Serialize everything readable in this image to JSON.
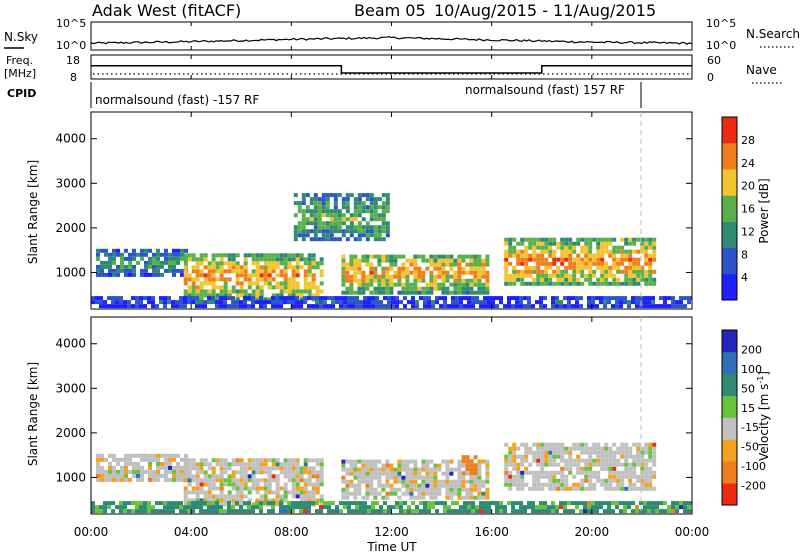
{
  "header": {
    "radar_title": "Adak West (fitACF)",
    "beam_label": "Beam 05",
    "date_range": "10/Aug/2015 - 11/Aug/2015"
  },
  "noise_panel": {
    "label": "N.Sky",
    "left_ticks": [
      "10^5",
      "10^0"
    ],
    "right_ticks": [
      "10^5",
      "10^0"
    ],
    "right_label": "N.Search"
  },
  "freq_panel": {
    "label_line1": "Freq.",
    "label_line2": "[MHz]",
    "left_ticks": [
      "18",
      "8"
    ],
    "right_ticks": [
      "60",
      "0"
    ],
    "right_label": "Nave"
  },
  "cpid_panel": {
    "label": "CPID",
    "left_program": "normalsound (fast) -157 RF",
    "right_program": "normalsound (fast) 157 RF"
  },
  "power_panel": {
    "ylabel": "Slant Range [km]",
    "yticks": [
      "4000",
      "3000",
      "2000",
      "1000"
    ],
    "colorbar_label": "Power [dB]",
    "colorbar_ticks": [
      "28",
      "24",
      "20",
      "16",
      "12",
      "8",
      "4"
    ],
    "colors": [
      "#1f1fff",
      "#2b55c8",
      "#2f8a73",
      "#59b04a",
      "#f4c430",
      "#f07e1c",
      "#ee2a12"
    ]
  },
  "velocity_panel": {
    "ylabel": "Slant Range [km]",
    "yticks": [
      "4000",
      "3000",
      "2000",
      "1000"
    ],
    "colorbar_label": "Velocity [m s",
    "colorbar_exp": "-1",
    "colorbar_label_end": "]",
    "colorbar_ticks": [
      "200",
      "100",
      "50",
      "15",
      "-15",
      "-50",
      "-100",
      "-200"
    ],
    "colors": [
      "#2424c0",
      "#2c70b8",
      "#2f8a73",
      "#65c43c",
      "#c0c0c0",
      "#f4a020",
      "#f07e1c",
      "#ee2a12"
    ]
  },
  "x_axis": {
    "label": "Time UT",
    "ticks": [
      "00:00",
      "04:00",
      "08:00",
      "12:00",
      "16:00",
      "20:00",
      "00:00"
    ]
  },
  "chart_data": [
    {
      "type": "line",
      "title": "N.Sky",
      "x": [
        "00:00",
        "04:00",
        "08:00",
        "12:00",
        "16:00",
        "20:00",
        "00:00"
      ],
      "series": [
        {
          "name": "N.Sky",
          "values": [
            1.2,
            1.5,
            1.9,
            2.2,
            1.8,
            1.4,
            1.2
          ]
        }
      ],
      "yscale": "log",
      "ylim": [
        1,
        100000
      ]
    },
    {
      "type": "line",
      "title": "Freq.",
      "ylabel": "[MHz]",
      "x": [
        "00:00",
        "10:00",
        "10:00",
        "18:00",
        "18:00",
        "00:00"
      ],
      "series": [
        {
          "name": "Freq.",
          "values": [
            13.5,
            13.5,
            10.5,
            10.5,
            13.5,
            13.5
          ]
        }
      ],
      "ylim": [
        8,
        18
      ]
    },
    {
      "type": "heatmap",
      "title": "Power [dB]",
      "xlabel": "Time UT",
      "ylabel": "Slant Range [km]",
      "x_range_hours": [
        0,
        24
      ],
      "y_range_km": [
        180,
        4600
      ],
      "color_scale": [
        0,
        30
      ],
      "regions": [
        {
          "t0": 0.2,
          "t1": 3.8,
          "r0": 900,
          "r1": 1450,
          "level_db": 12
        },
        {
          "t0": 3.7,
          "t1": 9.2,
          "r0": 350,
          "r1": 1380,
          "level_db": 23
        },
        {
          "t0": 8.1,
          "t1": 11.8,
          "r0": 1700,
          "r1": 2700,
          "level_db": 15
        },
        {
          "t0": 10.0,
          "t1": 15.8,
          "r0": 500,
          "r1": 1400,
          "level_db": 22
        },
        {
          "t0": 16.5,
          "t1": 22.5,
          "r0": 700,
          "r1": 1700,
          "level_db": 24
        },
        {
          "t0": 0.0,
          "t1": 24.0,
          "r0": 200,
          "r1": 420,
          "level_db": 6
        }
      ]
    },
    {
      "type": "heatmap",
      "title": "Velocity",
      "xlabel": "Time UT",
      "ylabel": "Slant Range [km]",
      "x_range_hours": [
        0,
        24
      ],
      "y_range_km": [
        180,
        4600
      ],
      "color_scale": [
        -200,
        200
      ],
      "regions": [
        {
          "t0": 0.2,
          "t1": 3.8,
          "r0": 900,
          "r1": 1450,
          "velocity": 0
        },
        {
          "t0": 3.7,
          "t1": 9.2,
          "r0": 350,
          "r1": 1380,
          "velocity": 0
        },
        {
          "t0": 10.0,
          "t1": 15.8,
          "r0": 500,
          "r1": 1400,
          "velocity": 0
        },
        {
          "t0": 14.8,
          "t1": 15.4,
          "r0": 1050,
          "r1": 1450,
          "velocity": -80
        },
        {
          "t0": 16.5,
          "t1": 22.5,
          "r0": 700,
          "r1": 1700,
          "velocity": 0
        },
        {
          "t0": 0.0,
          "t1": 24.0,
          "r0": 200,
          "r1": 420,
          "velocity": 40
        }
      ]
    }
  ]
}
